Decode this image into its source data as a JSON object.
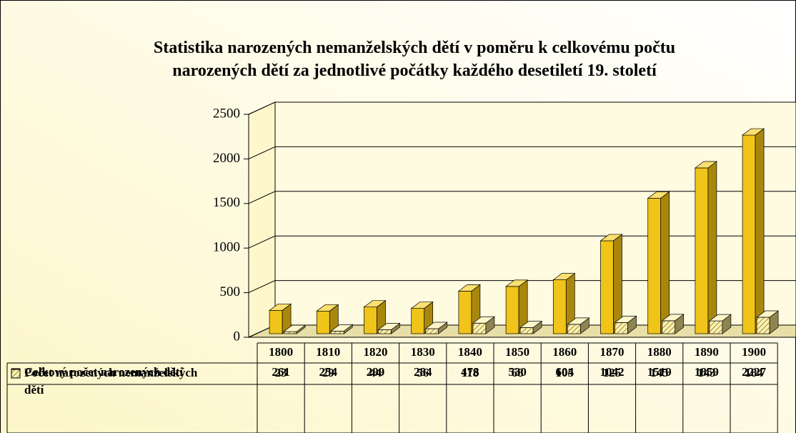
{
  "chart_data": {
    "type": "bar3d",
    "title": "Statistika narozených nemanželských dětí v poměru k celkovému počtu narozených dětí za jednotlivé počátky každého desetiletí 19. století",
    "categories": [
      "1800",
      "1810",
      "1820",
      "1830",
      "1840",
      "1850",
      "1860",
      "1870",
      "1880",
      "1890",
      "1900"
    ],
    "series": [
      {
        "name": "Celkový počet narozených dětí",
        "color": "#f0c419",
        "values": [
          261,
          254,
          299,
          284,
          478,
          530,
          604,
          1042,
          1519,
          1859,
          2227
        ]
      },
      {
        "name": "Počet narozených nemanželských dětí",
        "color": "#fdf1b0",
        "values": [
          23,
          29,
          44,
          56,
          118,
          68,
          105,
          125,
          145,
          143,
          184
        ]
      }
    ],
    "ylim": [
      0,
      2500
    ],
    "yticks": [
      0,
      500,
      1000,
      1500,
      2000,
      2500
    ],
    "grid": true
  }
}
